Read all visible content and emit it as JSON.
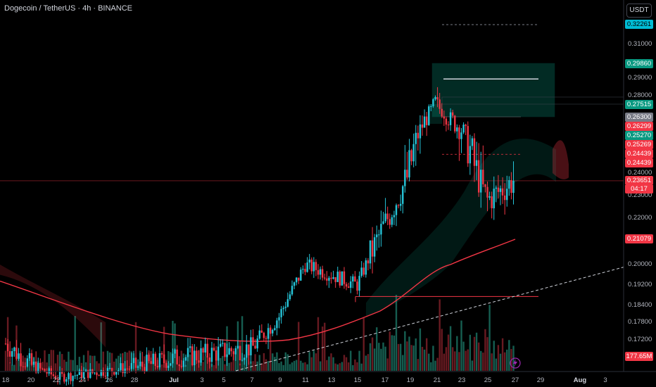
{
  "header": {
    "title": "Dogecoin / TetherUS · 4h · BINANCE",
    "currency_button": "USDT"
  },
  "price_axis": {
    "labels": [
      "0.31000",
      "0.29000",
      "0.28000",
      "0.24000",
      "0.23000",
      "0.22000",
      "0.20000",
      "0.19200",
      "0.18400",
      "0.17800",
      "0.17200"
    ],
    "badges": [
      {
        "text": "0.32261",
        "color": "#00bcd4",
        "text_color": "#000000"
      },
      {
        "text": "0.29860",
        "color": "#089981",
        "text_color": "#ffffff"
      },
      {
        "text": "0.27515",
        "color": "#089981",
        "text_color": "#ffffff"
      },
      {
        "text": "0.26300",
        "color": "#787b86",
        "text_color": "#ffffff"
      },
      {
        "text": "0.26299",
        "color": "#f23645",
        "text_color": "#ffffff"
      },
      {
        "text": "0.25270",
        "color": "#089981",
        "text_color": "#ffffff"
      },
      {
        "text": "0.25269",
        "color": "#f23645",
        "text_color": "#ffffff"
      },
      {
        "text": "0.24439",
        "color": "#f23645",
        "text_color": "#ffffff"
      },
      {
        "text": "0.24439",
        "color": "#f23645",
        "text_color": "#ffffff"
      },
      {
        "text": "0.23651",
        "color": "#f23645",
        "text_color": "#ffffff"
      },
      {
        "text": "0.21079",
        "color": "#f23645",
        "text_color": "#ffffff"
      },
      {
        "text": "177.65M",
        "color": "#f23645",
        "text_color": "#ffffff"
      }
    ],
    "countdown": "04:17"
  },
  "time_axis": {
    "labels": [
      {
        "text": "18",
        "month": false
      },
      {
        "text": "20",
        "month": false
      },
      {
        "text": "22",
        "month": false
      },
      {
        "text": "24",
        "month": false
      },
      {
        "text": "26",
        "month": false
      },
      {
        "text": "28",
        "month": false
      },
      {
        "text": "Jul",
        "month": true
      },
      {
        "text": "3",
        "month": false
      },
      {
        "text": "5",
        "month": false
      },
      {
        "text": "7",
        "month": false
      },
      {
        "text": "9",
        "month": false
      },
      {
        "text": "11",
        "month": false
      },
      {
        "text": "13",
        "month": false
      },
      {
        "text": "15",
        "month": false
      },
      {
        "text": "17",
        "month": false
      },
      {
        "text": "19",
        "month": false
      },
      {
        "text": "21",
        "month": false
      },
      {
        "text": "23",
        "month": false
      },
      {
        "text": "25",
        "month": false
      },
      {
        "text": "27",
        "month": false
      },
      {
        "text": "29",
        "month": false
      },
      {
        "text": "Aug",
        "month": true
      },
      {
        "text": "3",
        "month": false
      }
    ]
  },
  "colors": {
    "up": "#26c6da",
    "down": "#f23645",
    "ma": "#f23645",
    "zone_green": "#089981",
    "trendline": "#d1d4dc"
  },
  "chart_data": {
    "type": "candlestick",
    "symbol": "Dogecoin / TetherUS",
    "timeframe": "4h",
    "exchange": "BINANCE",
    "last_price": 0.23651,
    "ylim": [
      0.165,
      0.33
    ],
    "keypoints": [
      {
        "date": "Jun 18",
        "close": 0.171
      },
      {
        "date": "Jun 22",
        "close": 0.159
      },
      {
        "date": "Jul 1",
        "close": 0.167
      },
      {
        "date": "Jul 7",
        "close": 0.17
      },
      {
        "date": "Jul 9",
        "close": 0.18
      },
      {
        "date": "Jul 11",
        "close": 0.2
      },
      {
        "date": "Jul 15",
        "close": 0.192
      },
      {
        "date": "Jul 19",
        "close": 0.24
      },
      {
        "date": "Jul 21",
        "close": 0.275
      },
      {
        "date": "Jul 22",
        "close": 0.263
      },
      {
        "date": "Jul 23",
        "close": 0.255
      },
      {
        "date": "Jul 25",
        "close": 0.228
      },
      {
        "date": "Jul 27",
        "close": 0.2365
      }
    ],
    "levels": {
      "target_high": 0.32261,
      "zone_top": 0.2986,
      "zone_bottom": 0.26299,
      "entry": 0.27515,
      "support": 0.1875,
      "moving_average_last": 0.21079
    }
  }
}
